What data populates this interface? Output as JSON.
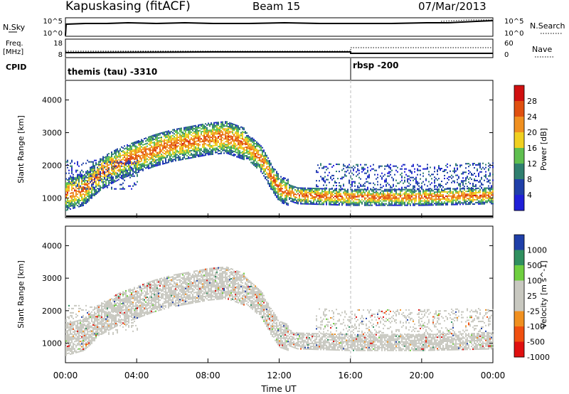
{
  "header": {
    "title": "Kapuskasing (fitACF)",
    "beam": "Beam 15",
    "date": "07/Mar/2013"
  },
  "sky_panel": {
    "left_label": "N.Sky",
    "left_ticks": [
      "10^5",
      "10^0"
    ],
    "right_ticks": [
      "10^5",
      "10^0"
    ],
    "right_label": "N.Search"
  },
  "freq_panel": {
    "left_label_line1": "Freq.",
    "left_label_line2": "[MHz]",
    "left_ticks": [
      "18",
      "8"
    ],
    "right_ticks": [
      "60",
      "0"
    ],
    "right_label": "Nave"
  },
  "cpid": {
    "label": "CPID",
    "segments": [
      "themis (tau) -3310",
      "rbsp -200"
    ]
  },
  "colors": {
    "power_scale": [
      "#1f1fd8",
      "#1f3fa8",
      "#2f7f6f",
      "#5fbf4f",
      "#f0d020",
      "#f09020",
      "#e05010",
      "#d01010"
    ],
    "velocity_scale": [
      "#e01010",
      "#f05010",
      "#f09020",
      "#c8c8c0",
      "#c8c8c0",
      "#6fcf3f",
      "#2f8f5f",
      "#1f3fa8"
    ]
  },
  "chart_data": [
    {
      "type": "heatmap",
      "title": "",
      "xlabel": "",
      "ylabel": "Slant Range [km]",
      "x_ticks": [
        "00:00",
        "04:00",
        "08:00",
        "12:00",
        "16:00",
        "20:00",
        "00:00"
      ],
      "y_ticks": [
        "1000",
        "2000",
        "3000",
        "4000"
      ],
      "ylim": [
        400,
        4600
      ],
      "colorbar": {
        "label": "Power [dB]",
        "ticks": [
          "28",
          "24",
          "20",
          "16",
          "12",
          "8",
          "4"
        ]
      },
      "echo_bands": [
        {
          "name": "",
          "points": [
            [
              0.0,
              1150
            ],
            [
              1.0,
              1300
            ],
            [
              2.0,
              1800
            ],
            [
              3.0,
              2100
            ],
            [
              4.0,
              2300
            ],
            [
              5.0,
              2500
            ],
            [
              6.0,
              2650
            ],
            [
              7.0,
              2750
            ],
            [
              8.0,
              2850
            ],
            [
              9.0,
              2900
            ],
            [
              10.0,
              2700
            ],
            [
              11.0,
              2200
            ],
            [
              11.5,
              1700
            ],
            [
              12.0,
              1300
            ],
            [
              13.0,
              1100
            ],
            [
              16.0,
              1050
            ],
            [
              20.0,
              1050
            ],
            [
              24.0,
              1100
            ]
          ]
        }
      ]
    },
    {
      "type": "heatmap",
      "title": "",
      "xlabel": "Time UT",
      "ylabel": "Slant Range [km]",
      "x_ticks": [
        "00:00",
        "04:00",
        "08:00",
        "12:00",
        "16:00",
        "20:00",
        "00:00"
      ],
      "y_ticks": [
        "1000",
        "2000",
        "3000",
        "4000"
      ],
      "ylim": [
        400,
        4600
      ],
      "colorbar": {
        "label": "Velocity [m s^-1]",
        "ticks": [
          "1000",
          "500",
          "100",
          "25",
          "-25",
          "-100",
          "-500",
          "-1000"
        ]
      }
    }
  ]
}
